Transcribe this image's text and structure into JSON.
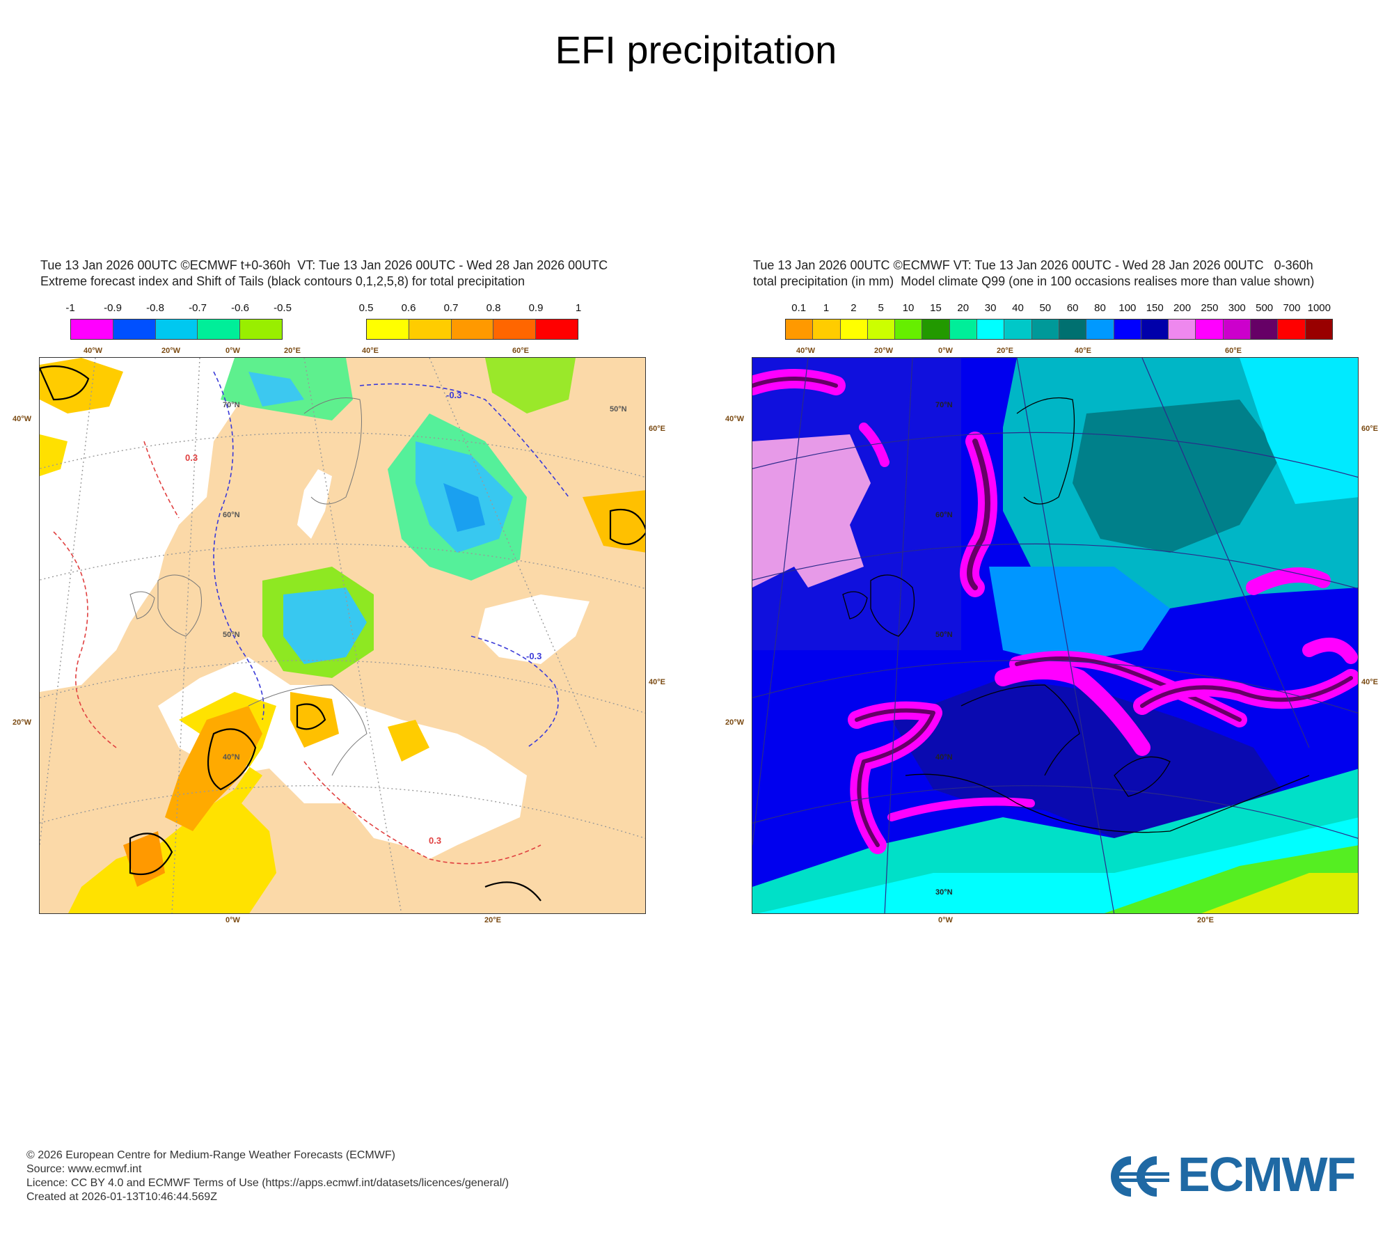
{
  "page": {
    "title": "EFI precipitation"
  },
  "left_panel": {
    "header_line1": "Tue 13 Jan 2026 00UTC ©ECMWF t+0-360h  VT: Tue 13 Jan 2026 00UTC - Wed 28 Jan 2026 00UTC",
    "header_line2": "Extreme forecast index and Shift of Tails (black contours 0,1,2,5,8) for total precipitation",
    "legend_negative": {
      "ticks": [
        "-1",
        "-0.9",
        "-0.8",
        "-0.7",
        "-0.6",
        "-0.5"
      ],
      "colors": [
        "#ff00ff",
        "#0050ff",
        "#00c8f0",
        "#00ee99",
        "#99ee00"
      ]
    },
    "legend_positive": {
      "ticks": [
        "0.5",
        "0.6",
        "0.7",
        "0.8",
        "0.9",
        "1"
      ],
      "colors": [
        "#ffff00",
        "#ffcc00",
        "#ff9900",
        "#ff6600",
        "#ff0000"
      ]
    },
    "contour_labels": [
      "-0.3",
      "0.3"
    ],
    "lon_labels_top": [
      "40°W",
      "20°W",
      "0°W",
      "20°E",
      "40°E",
      "60°E"
    ],
    "lon_labels_bottom": [
      "0°W",
      "20°E"
    ],
    "lat_labels_left": [
      "40°W",
      "20°W"
    ],
    "lat_labels_right": [
      "60°E",
      "40°E"
    ],
    "lat_labels_inner": [
      "70°N",
      "60°N",
      "50°N",
      "40°N",
      "50°N"
    ]
  },
  "right_panel": {
    "header_line1": "Tue 13 Jan 2026 00UTC ©ECMWF VT: Tue 13 Jan 2026 00UTC - Wed 28 Jan 2026 00UTC   0-360h",
    "header_line2": "total precipitation (in mm)  Model climate Q99 (one in 100 occasions realises more than value shown)",
    "legend": {
      "ticks": [
        "0.1",
        "1",
        "2",
        "5",
        "10",
        "15",
        "20",
        "30",
        "40",
        "50",
        "60",
        "80",
        "100",
        "150",
        "200",
        "250",
        "300",
        "500",
        "700",
        "1000"
      ],
      "colors": [
        "#ff9900",
        "#ffcc00",
        "#ffff00",
        "#ccff00",
        "#66ee00",
        "#229900",
        "#00ee99",
        "#00ffff",
        "#00c8c8",
        "#009999",
        "#007070",
        "#0099ff",
        "#0000ff",
        "#0000aa",
        "#ee88ee",
        "#ff00ff",
        "#cc00cc",
        "#660066",
        "#ff0000",
        "#990000"
      ]
    },
    "lon_labels_top": [
      "40°W",
      "20°W",
      "0°W",
      "20°E",
      "40°E",
      "60°E"
    ],
    "lon_labels_bottom": [
      "0°W",
      "20°E"
    ],
    "lat_labels_left": [
      "40°W",
      "20°W"
    ],
    "lat_labels_right": [
      "60°E",
      "40°E"
    ],
    "lat_labels_inner": [
      "70°N",
      "60°N",
      "50°N",
      "40°N",
      "30°N"
    ]
  },
  "footer": {
    "copyright": "© 2026 European Centre for Medium-Range Weather Forecasts (ECMWF)",
    "source": "Source: www.ecmwf.int",
    "licence": "Licence: CC BY 4.0 and ECMWF Terms of Use (https://apps.ecmwf.int/datasets/licences/general/)",
    "created": "Created at 2026-01-13T10:46:44.569Z"
  },
  "logo": {
    "text": "ECMWF",
    "color": "#1f69a4"
  }
}
